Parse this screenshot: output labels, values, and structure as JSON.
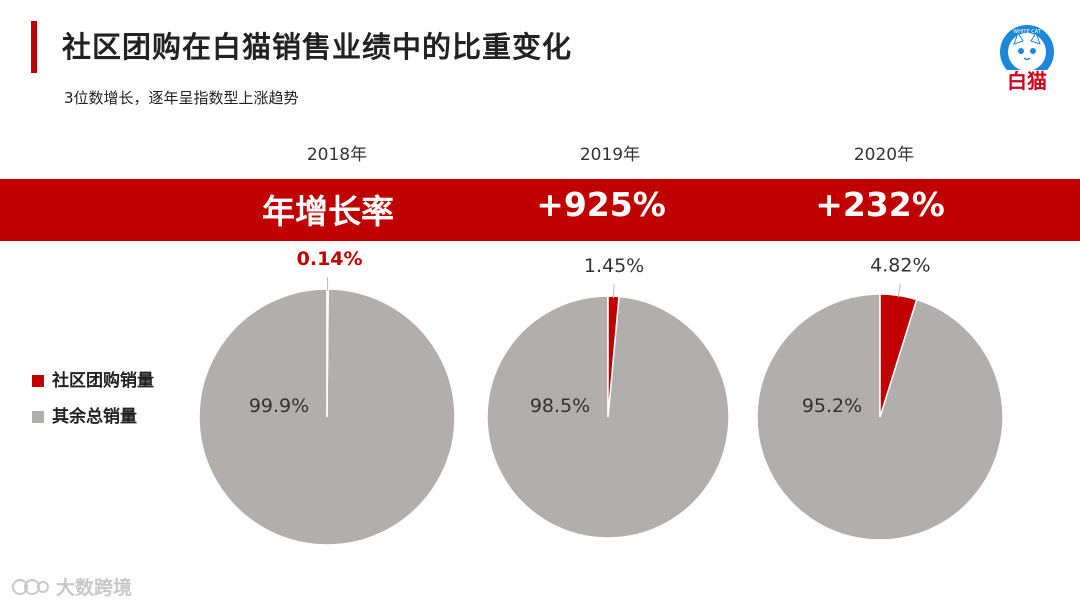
{
  "header": {
    "title": "社区团购在白猫销售业绩中的比重变化",
    "subtitle": "3位数增长，逐年呈指数型上涨趋势"
  },
  "logo": {
    "brand_text": "白猫",
    "ring_text": "WHITE CAT"
  },
  "growth_band": {
    "label": "年增长率",
    "values": [
      "+925%",
      "+232%"
    ]
  },
  "watermark": {
    "text": "大数跨境"
  },
  "colors": {
    "accent": "#c00000",
    "rest": "#b3aeae",
    "text": "#222222"
  },
  "chart_data": {
    "type": "pie",
    "legend_position": "left",
    "series_names": [
      "社区团购销量",
      "其余总销量"
    ],
    "pies": [
      {
        "year": "2018年",
        "community": 0.14,
        "rest": 99.9,
        "community_label": "0.14%",
        "rest_label": "99.9%"
      },
      {
        "year": "2019年",
        "community": 1.45,
        "rest": 98.5,
        "community_label": "1.45%",
        "rest_label": "98.5%"
      },
      {
        "year": "2020年",
        "community": 4.82,
        "rest": 95.2,
        "community_label": "4.82%",
        "rest_label": "95.2%"
      }
    ]
  }
}
